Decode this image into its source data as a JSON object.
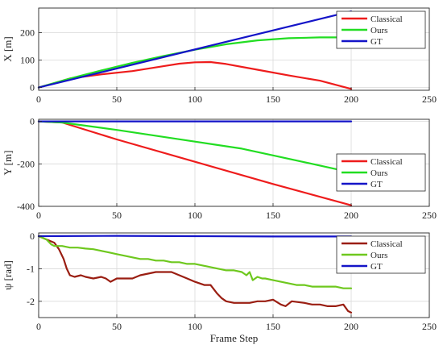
{
  "chart_data": [
    {
      "type": "line",
      "ylabel": "X [m]",
      "xlabel": "",
      "xlim": [
        0,
        250
      ],
      "ylim": [
        -10,
        290
      ],
      "xticks": [
        0,
        50,
        100,
        150,
        200,
        250
      ],
      "yticks": [
        0,
        100,
        200
      ],
      "grid": true,
      "legend_position": "top-right",
      "series": [
        {
          "name": "Classical",
          "color": "#ee1c1c",
          "x": [
            0,
            10,
            20,
            40,
            60,
            80,
            90,
            100,
            110,
            120,
            140,
            160,
            180,
            200
          ],
          "y": [
            0,
            16,
            33,
            48,
            60,
            78,
            87,
            92,
            93,
            86,
            65,
            44,
            25,
            -5
          ]
        },
        {
          "name": "Ours",
          "color": "#22dd22",
          "x": [
            0,
            20,
            40,
            60,
            80,
            100,
            120,
            140,
            160,
            180,
            200
          ],
          "y": [
            0,
            33,
            62,
            90,
            115,
            138,
            158,
            172,
            180,
            183,
            183
          ]
        },
        {
          "name": "GT",
          "color": "#1414c8",
          "x": [
            0,
            200
          ],
          "y": [
            0,
            278
          ]
        }
      ]
    },
    {
      "type": "line",
      "ylabel": "Y [m]",
      "xlabel": "",
      "xlim": [
        0,
        250
      ],
      "ylim": [
        -400,
        10
      ],
      "xticks": [
        0,
        50,
        100,
        150,
        200,
        250
      ],
      "yticks": [
        -400,
        -200,
        0
      ],
      "grid": true,
      "legend_position": "right",
      "series": [
        {
          "name": "Classical",
          "color": "#ee1c1c",
          "x": [
            0,
            15,
            50,
            100,
            150,
            200
          ],
          "y": [
            0,
            -5,
            -85,
            -190,
            -295,
            -395
          ]
        },
        {
          "name": "Ours",
          "color": "#22dd22",
          "x": [
            0,
            15,
            50,
            100,
            130,
            150,
            200
          ],
          "y": [
            0,
            -5,
            -40,
            -95,
            -128,
            -160,
            -240
          ]
        },
        {
          "name": "GT",
          "color": "#1414c8",
          "x": [
            0,
            200
          ],
          "y": [
            0,
            0
          ]
        }
      ]
    },
    {
      "type": "line",
      "ylabel": "ψ [rad]",
      "xlabel": "Frame Step",
      "xlim": [
        0,
        250
      ],
      "ylim": [
        -2.5,
        0.1
      ],
      "xticks": [
        0,
        50,
        100,
        150,
        200,
        250
      ],
      "yticks": [
        -2,
        -1,
        0
      ],
      "grid": true,
      "legend_position": "top-right",
      "series": [
        {
          "name": "Classical",
          "color": "#9a1e12",
          "x": [
            0,
            5,
            10,
            13,
            16,
            18,
            20,
            23,
            27,
            30,
            35,
            40,
            43,
            46,
            50,
            55,
            60,
            65,
            70,
            75,
            80,
            85,
            90,
            95,
            100,
            103,
            106,
            110,
            114,
            117,
            120,
            125,
            130,
            135,
            140,
            145,
            150,
            155,
            158,
            162,
            170,
            175,
            180,
            185,
            190,
            195,
            198,
            200
          ],
          "y": [
            0,
            -0.1,
            -0.2,
            -0.4,
            -0.7,
            -1.0,
            -1.2,
            -1.25,
            -1.2,
            -1.25,
            -1.3,
            -1.25,
            -1.3,
            -1.4,
            -1.3,
            -1.3,
            -1.3,
            -1.2,
            -1.15,
            -1.1,
            -1.1,
            -1.1,
            -1.2,
            -1.3,
            -1.4,
            -1.45,
            -1.5,
            -1.5,
            -1.75,
            -1.9,
            -2.0,
            -2.05,
            -2.05,
            -2.05,
            -2.0,
            -2.0,
            -1.95,
            -2.1,
            -2.15,
            -2.0,
            -2.05,
            -2.1,
            -2.1,
            -2.15,
            -2.15,
            -2.1,
            -2.3,
            -2.35
          ]
        },
        {
          "name": "Ours",
          "color": "#6ec81e",
          "x": [
            0,
            5,
            8,
            10,
            15,
            20,
            25,
            30,
            35,
            40,
            45,
            50,
            55,
            60,
            65,
            70,
            75,
            80,
            85,
            90,
            95,
            100,
            105,
            110,
            115,
            120,
            125,
            130,
            133,
            135,
            137,
            140,
            143,
            145,
            150,
            155,
            160,
            165,
            170,
            175,
            180,
            185,
            190,
            195,
            200
          ],
          "y": [
            0,
            -0.1,
            -0.25,
            -0.3,
            -0.3,
            -0.35,
            -0.35,
            -0.38,
            -0.4,
            -0.45,
            -0.5,
            -0.55,
            -0.6,
            -0.65,
            -0.7,
            -0.7,
            -0.75,
            -0.75,
            -0.8,
            -0.8,
            -0.85,
            -0.85,
            -0.9,
            -0.95,
            -1.0,
            -1.05,
            -1.05,
            -1.1,
            -1.2,
            -1.1,
            -1.35,
            -1.25,
            -1.3,
            -1.3,
            -1.35,
            -1.4,
            -1.45,
            -1.5,
            -1.5,
            -1.55,
            -1.55,
            -1.55,
            -1.55,
            -1.6,
            -1.6
          ]
        },
        {
          "name": "GT",
          "color": "#1414c8",
          "x": [
            0,
            50,
            100,
            150,
            200
          ],
          "y": [
            0,
            0.01,
            0,
            -0.01,
            -0.01
          ]
        }
      ]
    }
  ]
}
